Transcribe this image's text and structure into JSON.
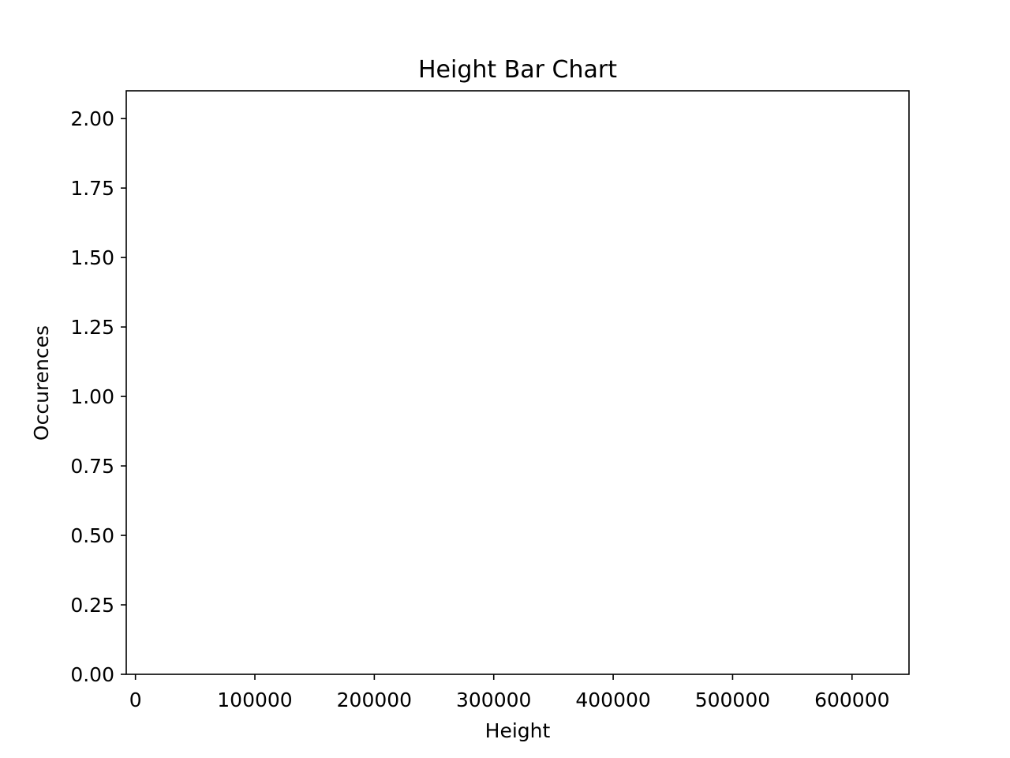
{
  "chart_data": {
    "type": "bar",
    "title": "Height Bar Chart",
    "xlabel": "Height",
    "ylabel": "Occurences",
    "xlim": [
      -7700,
      647700
    ],
    "ylim": [
      0,
      2.1
    ],
    "x_ticks": [
      0,
      100000,
      200000,
      300000,
      400000,
      500000,
      600000
    ],
    "x_tick_labels": [
      "0",
      "100000",
      "200000",
      "300000",
      "400000",
      "500000",
      "600000"
    ],
    "y_ticks": [
      0,
      0.25,
      0.5,
      0.75,
      1.0,
      1.25,
      1.5,
      1.75,
      2.0
    ],
    "y_tick_labels": [
      "0.00",
      "0.25",
      "0.50",
      "0.75",
      "1.00",
      "1.25",
      "1.50",
      "1.75",
      "2.00"
    ],
    "grid": false,
    "legend": "none",
    "bar_color": "#1f77b4",
    "series": [
      {
        "x": [],
        "values": []
      }
    ]
  }
}
